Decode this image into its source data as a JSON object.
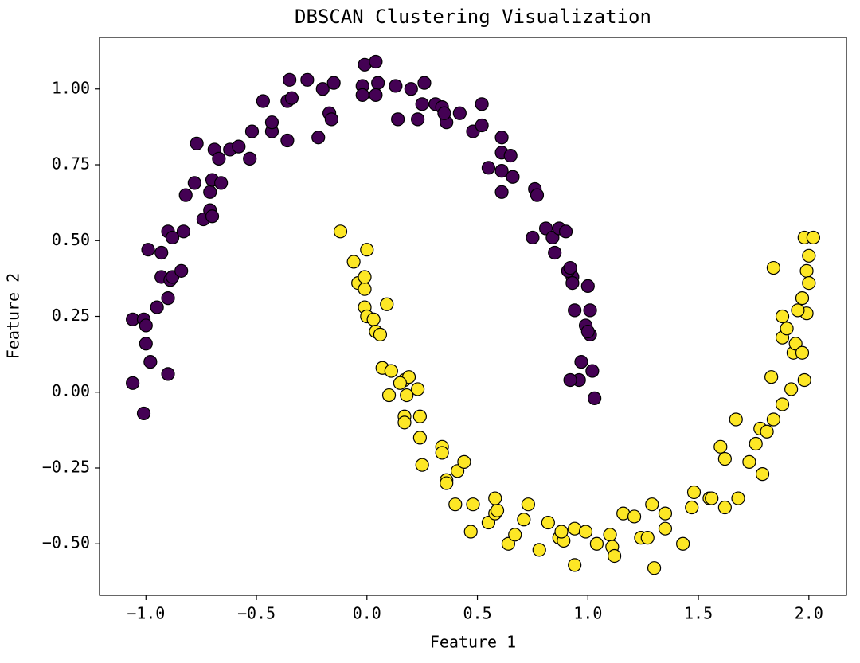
{
  "chart_data": {
    "type": "scatter",
    "title": "DBSCAN Clustering Visualization",
    "x_label": "Feature 1",
    "y_label": "Feature 2",
    "xlim": [
      -1.21,
      2.17
    ],
    "ylim": [
      -0.67,
      1.17
    ],
    "xticks": [
      {
        "value": -1,
        "label": "−1.0"
      },
      {
        "value": -0.5,
        "label": "−0.5"
      },
      {
        "value": 0,
        "label": "0.0"
      },
      0.5,
      {
        "value": 1,
        "label": "1.0"
      },
      1.5,
      {
        "value": 2,
        "label": "2.0"
      }
    ],
    "yticks": [
      {
        "value": -0.5,
        "label": "−0.50"
      },
      {
        "value": -0.25,
        "label": "−0.25"
      },
      {
        "value": 0,
        "label": "0.00"
      },
      {
        "value": 0.25,
        "label": "0.25"
      },
      {
        "value": 0.5,
        "label": "0.50"
      },
      {
        "value": 0.75,
        "label": "0.75"
      },
      {
        "value": 1,
        "label": "1.00"
      }
    ],
    "grid": false,
    "edge_color": "#000000",
    "series": [
      {
        "color": "#440154",
        "x": [
          -1.06,
          -1.01,
          -1.06,
          -1.01,
          -1.0,
          -1.0,
          -0.98,
          -0.9,
          -0.99,
          -0.93,
          -0.93,
          -0.95,
          -0.9,
          -0.89,
          -0.88,
          -0.84,
          -0.9,
          -0.88,
          -0.83,
          -0.82,
          -0.78,
          -0.74,
          -0.71,
          -0.7,
          -0.71,
          -0.7,
          -0.77,
          -0.69,
          -0.67,
          -0.66,
          -0.62,
          -0.58,
          -0.53,
          -0.52,
          -0.47,
          -0.43,
          -0.43,
          -0.36,
          -0.36,
          -0.35,
          -0.34,
          -0.27,
          -0.22,
          -0.2,
          -0.17,
          -0.15,
          -0.16,
          -0.01,
          0.04,
          -0.02,
          -0.02,
          0.05,
          0.04,
          0.13,
          0.14,
          0.2,
          0.23,
          0.26,
          0.25,
          0.31,
          0.34,
          0.36,
          0.35,
          0.42,
          0.52,
          0.48,
          0.52,
          0.55,
          0.61,
          0.61,
          0.61,
          0.61,
          0.65,
          0.66,
          0.76,
          0.77,
          0.75,
          0.81,
          0.84,
          0.85,
          0.87,
          0.9,
          0.93,
          0.91,
          0.92,
          0.93,
          0.94,
          1.0,
          1.01,
          0.99,
          1.01,
          0.97,
          0.96,
          0.92,
          1.02,
          1.03,
          1.0
        ],
        "values": [
          0.03,
          -0.07,
          0.24,
          0.24,
          0.22,
          0.16,
          0.1,
          0.06,
          0.47,
          0.46,
          0.38,
          0.28,
          0.31,
          0.37,
          0.38,
          0.4,
          0.53,
          0.51,
          0.53,
          0.65,
          0.69,
          0.57,
          0.66,
          0.7,
          0.6,
          0.58,
          0.82,
          0.8,
          0.77,
          0.69,
          0.8,
          0.81,
          0.77,
          0.86,
          0.96,
          0.86,
          0.89,
          0.83,
          0.96,
          1.03,
          0.97,
          1.03,
          0.84,
          1.0,
          0.92,
          1.02,
          0.9,
          1.08,
          1.09,
          1.01,
          0.98,
          1.02,
          0.98,
          1.01,
          0.9,
          1.0,
          0.9,
          1.02,
          0.95,
          0.95,
          0.94,
          0.89,
          0.92,
          0.92,
          0.95,
          0.86,
          0.88,
          0.74,
          0.84,
          0.79,
          0.73,
          0.66,
          0.78,
          0.71,
          0.67,
          0.65,
          0.51,
          0.54,
          0.51,
          0.46,
          0.54,
          0.53,
          0.38,
          0.4,
          0.41,
          0.36,
          0.27,
          0.35,
          0.27,
          0.22,
          0.19,
          0.1,
          0.04,
          0.04,
          0.07,
          -0.02,
          0.2
        ]
      },
      {
        "color": "#fde725",
        "x": [
          -0.12,
          0.0,
          -0.06,
          -0.04,
          -0.01,
          -0.01,
          -0.01,
          0.0,
          0.03,
          0.09,
          0.04,
          0.06,
          0.07,
          0.11,
          0.17,
          0.19,
          0.18,
          0.15,
          0.1,
          0.23,
          0.17,
          0.17,
          0.24,
          0.24,
          0.25,
          0.34,
          0.34,
          0.36,
          0.36,
          0.41,
          0.44,
          0.4,
          0.48,
          0.47,
          0.55,
          0.58,
          0.59,
          0.58,
          0.64,
          0.67,
          0.71,
          0.73,
          0.78,
          0.82,
          0.87,
          0.89,
          0.88,
          0.94,
          0.94,
          0.99,
          1.04,
          1.1,
          1.11,
          1.12,
          1.16,
          1.21,
          1.24,
          1.27,
          1.29,
          1.3,
          1.35,
          1.35,
          1.43,
          1.47,
          1.48,
          1.55,
          1.56,
          1.6,
          1.62,
          1.62,
          1.67,
          1.68,
          1.73,
          1.76,
          1.78,
          1.79,
          1.81,
          1.84,
          1.83,
          1.84,
          1.88,
          1.88,
          1.9,
          1.92,
          1.93,
          1.94,
          1.98,
          1.99,
          1.97,
          1.99,
          2.0,
          1.98,
          2.02,
          1.97,
          1.95,
          2.0,
          1.88
        ],
        "values": [
          0.53,
          0.47,
          0.43,
          0.36,
          0.34,
          0.38,
          0.28,
          0.25,
          0.24,
          0.29,
          0.2,
          0.19,
          0.08,
          0.07,
          0.04,
          0.05,
          -0.01,
          0.03,
          -0.01,
          0.01,
          -0.08,
          -0.1,
          -0.08,
          -0.15,
          -0.24,
          -0.18,
          -0.2,
          -0.29,
          -0.3,
          -0.26,
          -0.23,
          -0.37,
          -0.37,
          -0.46,
          -0.43,
          -0.4,
          -0.39,
          -0.35,
          -0.5,
          -0.47,
          -0.42,
          -0.37,
          -0.52,
          -0.43,
          -0.48,
          -0.49,
          -0.46,
          -0.57,
          -0.45,
          -0.46,
          -0.5,
          -0.47,
          -0.51,
          -0.54,
          -0.4,
          -0.41,
          -0.48,
          -0.48,
          -0.37,
          -0.58,
          -0.4,
          -0.45,
          -0.5,
          -0.38,
          -0.33,
          -0.35,
          -0.35,
          -0.18,
          -0.22,
          -0.38,
          -0.09,
          -0.35,
          -0.23,
          -0.17,
          -0.12,
          -0.27,
          -0.13,
          -0.09,
          0.05,
          0.41,
          0.25,
          0.18,
          0.21,
          0.01,
          0.13,
          0.16,
          0.04,
          0.26,
          0.31,
          0.4,
          0.45,
          0.51,
          0.51,
          0.13,
          0.27,
          0.36,
          -0.04
        ]
      }
    ]
  }
}
